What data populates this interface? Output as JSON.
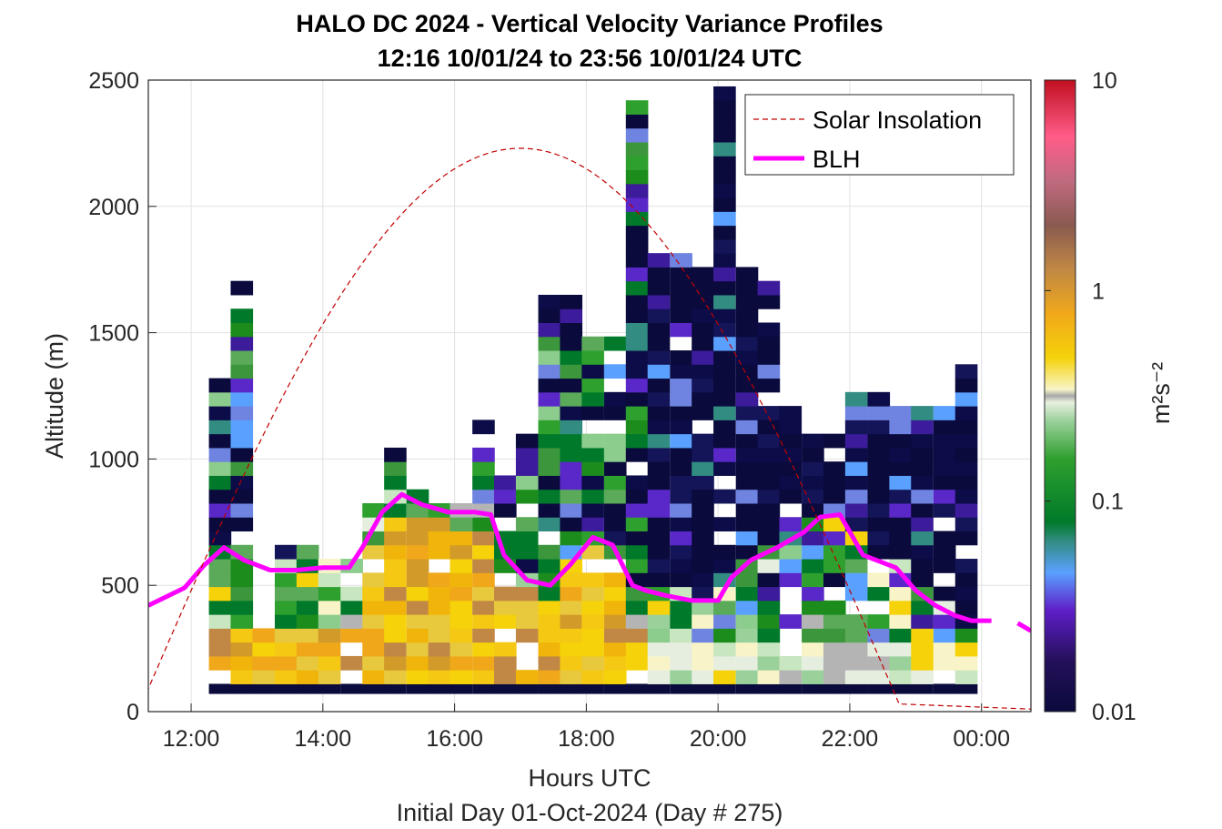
{
  "chart_data": {
    "type": "heatmap",
    "title": "HALO DC 2024 - Vertical Velocity Variance Profiles",
    "subtitle": "12:16 10/01/24 to 23:56 10/01/24  UTC",
    "xlabel": "Hours UTC",
    "xlabel2": "Initial Day 01-Oct-2024 (Day # 275)",
    "ylabel": "Altitude (m)",
    "colorbar_label": "m²s⁻²",
    "colorbar_scale": "log",
    "clim": [
      0.01,
      10
    ],
    "colorbar_ticks": [
      "0.01",
      "0.1",
      "1",
      "10"
    ],
    "xlim": [
      11.35,
      24.75
    ],
    "ylim": [
      0,
      2500
    ],
    "xticks": [
      {
        "value": 12,
        "label": "12:00"
      },
      {
        "value": 14,
        "label": "14:00"
      },
      {
        "value": 16,
        "label": "16:00"
      },
      {
        "value": 18,
        "label": "18:00"
      },
      {
        "value": 20,
        "label": "20:00"
      },
      {
        "value": 22,
        "label": "22:00"
      },
      {
        "value": 24,
        "label": "00:00"
      }
    ],
    "yticks": [
      0,
      500,
      1000,
      1500,
      2000,
      2500
    ],
    "grid": true,
    "legend": {
      "position": "top-right",
      "entries": [
        {
          "label": "Solar Insolation",
          "style": "dashed",
          "color": "#c00000"
        },
        {
          "label": "BLH",
          "style": "solid",
          "color": "#ff00ff"
        }
      ]
    },
    "profile_time_step_hours": 0.333,
    "altitude_bin_m": 55,
    "profiles": [
      {
        "t": 12.27,
        "top": 1280
      },
      {
        "t": 12.6,
        "top": 1700
      },
      {
        "t": 12.93,
        "top": 320
      },
      {
        "t": 13.27,
        "top": 650
      },
      {
        "t": 13.6,
        "top": 650
      },
      {
        "t": 13.93,
        "top": 600
      },
      {
        "t": 14.27,
        "top": 600
      },
      {
        "t": 14.6,
        "top": 800
      },
      {
        "t": 14.93,
        "top": 1040
      },
      {
        "t": 15.27,
        "top": 850
      },
      {
        "t": 15.6,
        "top": 780
      },
      {
        "t": 15.93,
        "top": 780
      },
      {
        "t": 16.27,
        "top": 1130
      },
      {
        "t": 16.6,
        "top": 900
      },
      {
        "t": 16.93,
        "top": 1080
      },
      {
        "t": 17.27,
        "top": 1600
      },
      {
        "t": 17.6,
        "top": 1600
      },
      {
        "t": 17.93,
        "top": 1460
      },
      {
        "t": 18.27,
        "top": 1450
      },
      {
        "t": 18.6,
        "top": 2400
      },
      {
        "t": 18.93,
        "top": 1800
      },
      {
        "t": 19.27,
        "top": 1860
      },
      {
        "t": 19.6,
        "top": 1720
      },
      {
        "t": 19.93,
        "top": 2440
      },
      {
        "t": 20.27,
        "top": 1720
      },
      {
        "t": 20.6,
        "top": 1680
      },
      {
        "t": 20.93,
        "top": 1160
      },
      {
        "t": 21.27,
        "top": 1100
      },
      {
        "t": 21.6,
        "top": 1100
      },
      {
        "t": 21.93,
        "top": 1220
      },
      {
        "t": 22.27,
        "top": 1220
      },
      {
        "t": 22.6,
        "top": 1180
      },
      {
        "t": 22.93,
        "top": 1180
      },
      {
        "t": 23.27,
        "top": 1180
      },
      {
        "t": 23.6,
        "top": 1340
      }
    ],
    "series": [
      {
        "name": "BLH",
        "x": [
          11.35,
          11.9,
          12.2,
          12.5,
          12.8,
          13.2,
          13.6,
          14.0,
          14.4,
          14.6,
          14.9,
          15.2,
          15.5,
          15.9,
          16.3,
          16.55,
          16.75,
          17.1,
          17.45,
          17.75,
          18.1,
          18.4,
          18.7,
          18.9,
          19.2,
          19.6,
          20.0,
          20.2,
          20.5,
          20.9,
          21.3,
          21.55,
          21.85,
          22.2,
          22.7,
          23.0,
          23.3,
          23.6,
          23.85,
          24.15,
          24.55,
          24.75
        ],
        "y": [
          420,
          490,
          580,
          650,
          600,
          560,
          560,
          570,
          570,
          650,
          790,
          860,
          820,
          790,
          790,
          780,
          620,
          520,
          500,
          580,
          690,
          660,
          500,
          480,
          460,
          440,
          440,
          530,
          600,
          650,
          710,
          770,
          780,
          620,
          570,
          480,
          420,
          380,
          360,
          360,
          350,
          320
        ]
      },
      {
        "name": "Solar Insolation",
        "sunrise": 11.2,
        "sunset": 22.8,
        "peak_time": 17.0,
        "peak_y": 2230,
        "after_sunset_y": 10
      }
    ]
  }
}
